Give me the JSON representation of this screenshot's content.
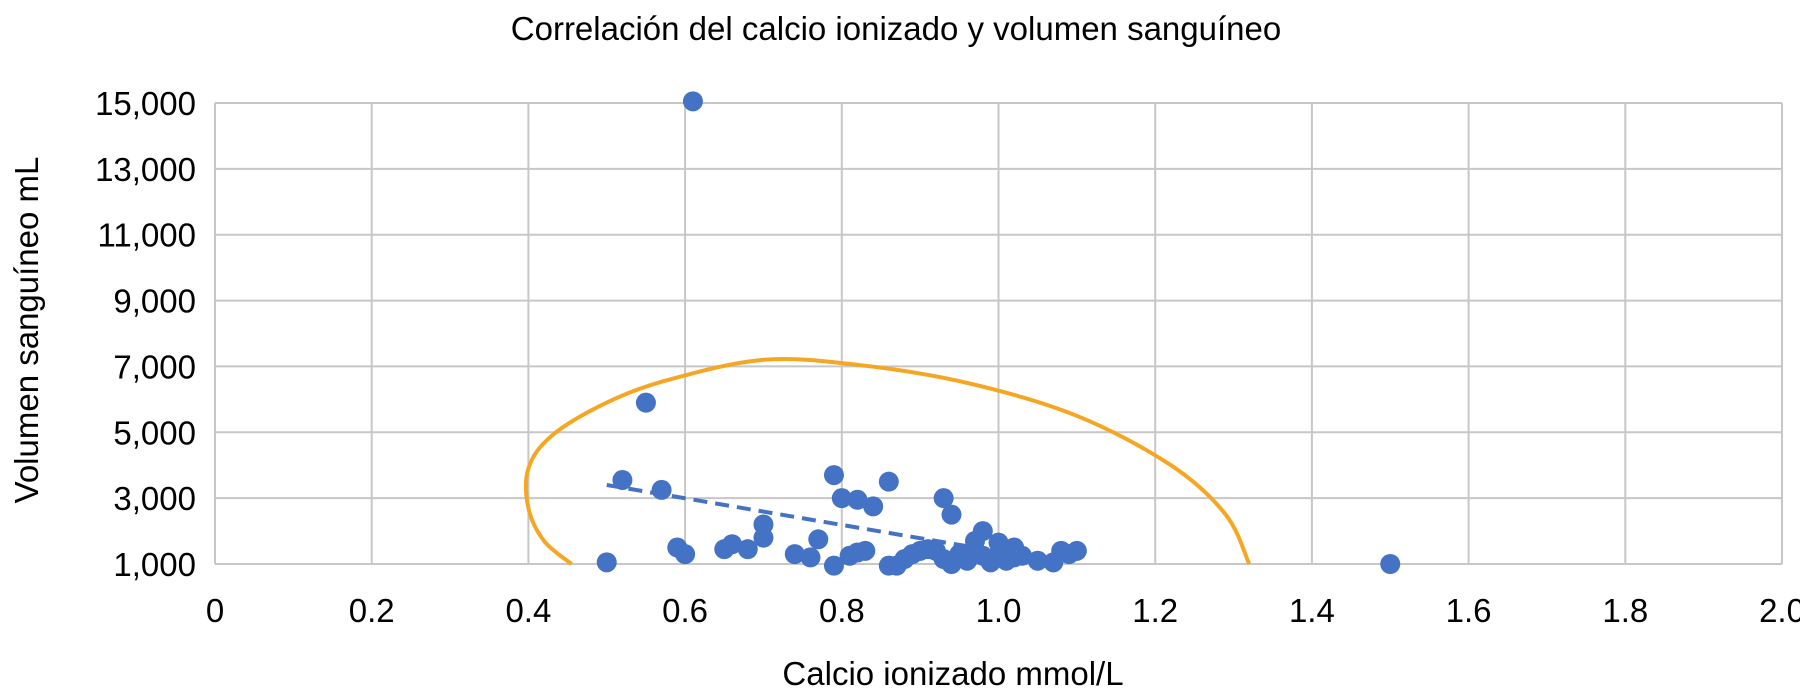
{
  "chart_data": {
    "type": "scatter",
    "title": "Correlación del calcio ionizado y volumen sanguíneo",
    "xlabel": "Calcio ionizado mmol/L",
    "ylabel": "Volumen sanguíneo mL",
    "xlim": [
      0,
      2.0
    ],
    "ylim": [
      1000,
      15000
    ],
    "x_ticks": [
      "0",
      "0.2",
      "0.4",
      "0.6",
      "0.8",
      "1.0",
      "1.2",
      "1.4",
      "1.6",
      "1.8",
      "2.0"
    ],
    "y_ticks": [
      "1,000",
      "3,000",
      "5,000",
      "7,000",
      "9,000",
      "11,000",
      "13,000",
      "15,000"
    ],
    "grid": true,
    "legend": "none",
    "colors": {
      "points": "#4472c4",
      "trendline": "#4472c4",
      "ellipse": "#f5a623",
      "grid": "#c7c7c7"
    },
    "points": [
      [
        0.61,
        15050
      ],
      [
        0.55,
        5900
      ],
      [
        0.52,
        3550
      ],
      [
        0.57,
        3250
      ],
      [
        0.5,
        1050
      ],
      [
        0.59,
        1500
      ],
      [
        0.6,
        1300
      ],
      [
        0.65,
        1450
      ],
      [
        0.66,
        1600
      ],
      [
        0.68,
        1450
      ],
      [
        0.7,
        1800
      ],
      [
        0.7,
        2200
      ],
      [
        0.74,
        1300
      ],
      [
        0.76,
        1200
      ],
      [
        0.77,
        1750
      ],
      [
        0.79,
        950
      ],
      [
        0.79,
        3700
      ],
      [
        0.8,
        3000
      ],
      [
        0.81,
        1250
      ],
      [
        0.82,
        2950
      ],
      [
        0.82,
        1350
      ],
      [
        0.83,
        1400
      ],
      [
        0.84,
        2750
      ],
      [
        0.86,
        950
      ],
      [
        0.86,
        3500
      ],
      [
        0.87,
        950
      ],
      [
        0.88,
        1150
      ],
      [
        0.89,
        1300
      ],
      [
        0.9,
        1400
      ],
      [
        0.91,
        1450
      ],
      [
        0.92,
        1400
      ],
      [
        0.93,
        3000
      ],
      [
        0.93,
        1150
      ],
      [
        0.94,
        2500
      ],
      [
        0.94,
        1000
      ],
      [
        0.95,
        1300
      ],
      [
        0.96,
        1100
      ],
      [
        0.97,
        1700
      ],
      [
        0.97,
        1400
      ],
      [
        0.98,
        2000
      ],
      [
        0.98,
        1250
      ],
      [
        0.99,
        1050
      ],
      [
        1.0,
        1650
      ],
      [
        1.0,
        1300
      ],
      [
        1.01,
        1100
      ],
      [
        1.02,
        1500
      ],
      [
        1.02,
        1200
      ],
      [
        1.03,
        1250
      ],
      [
        1.05,
        1100
      ],
      [
        1.07,
        1050
      ],
      [
        1.08,
        1400
      ],
      [
        1.09,
        1300
      ],
      [
        1.1,
        1400
      ],
      [
        1.5,
        1000
      ]
    ],
    "trendline": {
      "x": [
        0.5,
        0.97
      ],
      "y": [
        3400,
        1500
      ]
    },
    "ellipse": [
      [
        0.455,
        1000
      ],
      [
        0.42,
        1700
      ],
      [
        0.4,
        2700
      ],
      [
        0.4,
        3900
      ],
      [
        0.43,
        4900
      ],
      [
        0.5,
        5900
      ],
      [
        0.58,
        6600
      ],
      [
        0.7,
        7200
      ],
      [
        0.82,
        7050
      ],
      [
        0.96,
        6500
      ],
      [
        1.1,
        5500
      ],
      [
        1.22,
        4000
      ],
      [
        1.29,
        2500
      ],
      [
        1.32,
        1000
      ]
    ]
  }
}
